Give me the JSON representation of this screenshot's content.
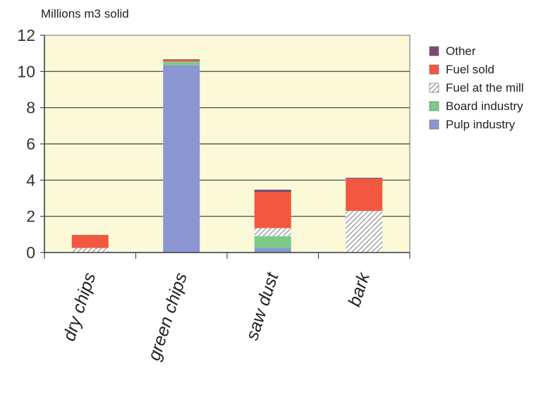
{
  "chart_data": {
    "type": "bar",
    "stacked": true,
    "ylabel": "Millions m3 solid",
    "ylim": [
      0,
      12
    ],
    "yticks": [
      0,
      2,
      4,
      6,
      8,
      10,
      12
    ],
    "grid": true,
    "legend_position": "right",
    "categories": [
      "dry chips",
      "green chips",
      "saw dust",
      "bark"
    ],
    "series": [
      {
        "name": "Pulp industry",
        "color": "#8c96d2",
        "pattern": "solid",
        "values": [
          0.0,
          10.35,
          0.25,
          0.0
        ]
      },
      {
        "name": "Board industry",
        "color": "#7dc98c",
        "pattern": "solid",
        "values": [
          0.0,
          0.2,
          0.65,
          0.0
        ]
      },
      {
        "name": "Fuel at the mill",
        "color": "#b9b9b9",
        "pattern": "hatch",
        "values": [
          0.25,
          0.0,
          0.45,
          2.3
        ]
      },
      {
        "name": "Fuel sold",
        "color": "#f2583f",
        "pattern": "solid",
        "values": [
          0.72,
          0.1,
          2.0,
          1.78
        ]
      },
      {
        "name": "Other",
        "color": "#7a4a78",
        "pattern": "solid",
        "values": [
          0.0,
          0.02,
          0.12,
          0.05
        ]
      }
    ],
    "legend_order": [
      "Other",
      "Fuel sold",
      "Fuel at the mill",
      "Board industry",
      "Pulp industry"
    ]
  }
}
